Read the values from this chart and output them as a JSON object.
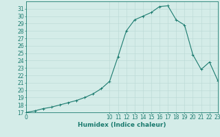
{
  "x": [
    0,
    1,
    2,
    3,
    4,
    5,
    6,
    7,
    8,
    9,
    10,
    11,
    12,
    13,
    14,
    15,
    16,
    17,
    18,
    19,
    20,
    21,
    22,
    23
  ],
  "y": [
    17,
    17.2,
    17.5,
    17.7,
    18.0,
    18.3,
    18.6,
    19.0,
    19.5,
    20.2,
    21.2,
    24.5,
    28.0,
    29.5,
    30.0,
    30.5,
    31.3,
    31.4,
    29.5,
    28.8,
    24.8,
    22.8,
    23.8,
    21.3
  ],
  "line_color": "#1a7a6e",
  "marker": "+",
  "marker_size": 3,
  "marker_linewidth": 0.7,
  "bg_color": "#d4ece8",
  "grid_color": "#b8d8d4",
  "axis_color": "#1a7a6e",
  "xlabel": "Humidex (Indice chaleur)",
  "ylim": [
    17,
    32
  ],
  "xlim": [
    0,
    23
  ],
  "yticks": [
    17,
    18,
    19,
    20,
    21,
    22,
    23,
    24,
    25,
    26,
    27,
    28,
    29,
    30,
    31
  ],
  "xticks_all": [
    0,
    1,
    2,
    3,
    4,
    5,
    6,
    7,
    8,
    9,
    10,
    11,
    12,
    13,
    14,
    15,
    16,
    17,
    18,
    19,
    20,
    21,
    22,
    23
  ],
  "xticks_labeled": [
    0,
    10,
    11,
    12,
    13,
    14,
    15,
    16,
    17,
    18,
    19,
    20,
    21,
    22,
    23
  ],
  "xtick_labels": [
    "0",
    "10",
    "11",
    "12",
    "13",
    "14",
    "15",
    "16",
    "17",
    "18",
    "19",
    "20",
    "21",
    "22",
    "23"
  ],
  "label_fontsize": 6.5,
  "tick_fontsize": 5.5,
  "linewidth": 0.8
}
